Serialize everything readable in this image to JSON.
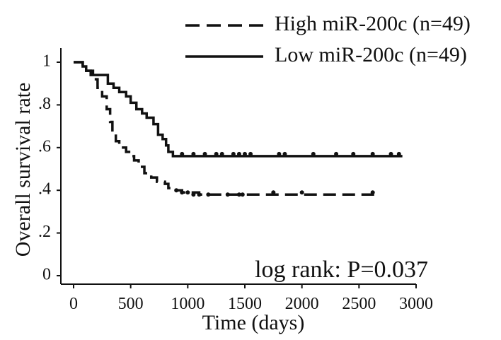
{
  "chart_data": {
    "type": "line",
    "subtype": "kaplan-meier",
    "xlabel": "Time (days)",
    "ylabel": "Overall survival rate",
    "xlim": [
      0,
      3000
    ],
    "ylim": [
      0,
      1
    ],
    "x_ticks": [
      0,
      500,
      1000,
      1500,
      2000,
      2500,
      3000
    ],
    "x_tick_labels": [
      "0",
      "500",
      "1000",
      "1500",
      "2000",
      "2500",
      "3000"
    ],
    "y_ticks": [
      0,
      0.2,
      0.4,
      0.6,
      0.8,
      1
    ],
    "y_tick_labels": [
      "0",
      ".2",
      ".4",
      ".6",
      ".8",
      "1"
    ],
    "grid": false,
    "legend_position": "top-right",
    "annotation": "log rank: P=0.037",
    "series": [
      {
        "name": "High miR-200c (n=49)",
        "style": "dashed",
        "color": "#111111",
        "steps": [
          [
            0,
            1.0
          ],
          [
            80,
            0.98
          ],
          [
            110,
            0.96
          ],
          [
            170,
            0.92
          ],
          [
            210,
            0.88
          ],
          [
            250,
            0.84
          ],
          [
            290,
            0.78
          ],
          [
            320,
            0.72
          ],
          [
            340,
            0.67
          ],
          [
            370,
            0.63
          ],
          [
            400,
            0.6
          ],
          [
            460,
            0.58
          ],
          [
            500,
            0.56
          ],
          [
            530,
            0.54
          ],
          [
            570,
            0.51
          ],
          [
            620,
            0.48
          ],
          [
            680,
            0.46
          ],
          [
            730,
            0.44
          ],
          [
            800,
            0.43
          ],
          [
            830,
            0.41
          ],
          [
            870,
            0.4
          ],
          [
            950,
            0.39
          ],
          [
            1100,
            0.38
          ],
          [
            2640,
            0.38
          ]
        ],
        "censored": [
          [
            900,
            0.4
          ],
          [
            950,
            0.39
          ],
          [
            1000,
            0.39
          ],
          [
            1050,
            0.38
          ],
          [
            1100,
            0.38
          ],
          [
            1180,
            0.38
          ],
          [
            1350,
            0.38
          ],
          [
            1450,
            0.38
          ],
          [
            1480,
            0.38
          ],
          [
            1750,
            0.39
          ],
          [
            2000,
            0.39
          ],
          [
            2620,
            0.39
          ]
        ]
      },
      {
        "name": "Low miR-200c  (n=49)",
        "style": "solid",
        "color": "#111111",
        "steps": [
          [
            0,
            1.0
          ],
          [
            80,
            0.98
          ],
          [
            110,
            0.96
          ],
          [
            150,
            0.94
          ],
          [
            270,
            0.94
          ],
          [
            300,
            0.9
          ],
          [
            350,
            0.88
          ],
          [
            400,
            0.86
          ],
          [
            460,
            0.84
          ],
          [
            500,
            0.81
          ],
          [
            550,
            0.78
          ],
          [
            600,
            0.76
          ],
          [
            640,
            0.74
          ],
          [
            700,
            0.71
          ],
          [
            740,
            0.66
          ],
          [
            780,
            0.64
          ],
          [
            810,
            0.61
          ],
          [
            830,
            0.58
          ],
          [
            870,
            0.56
          ],
          [
            2880,
            0.56
          ]
        ],
        "censored": [
          [
            950,
            0.57
          ],
          [
            1050,
            0.57
          ],
          [
            1150,
            0.57
          ],
          [
            1250,
            0.57
          ],
          [
            1300,
            0.57
          ],
          [
            1400,
            0.57
          ],
          [
            1450,
            0.57
          ],
          [
            1500,
            0.57
          ],
          [
            1550,
            0.57
          ],
          [
            1800,
            0.57
          ],
          [
            1850,
            0.57
          ],
          [
            2100,
            0.57
          ],
          [
            2300,
            0.57
          ],
          [
            2450,
            0.57
          ],
          [
            2620,
            0.57
          ],
          [
            2780,
            0.57
          ],
          [
            2850,
            0.57
          ]
        ]
      }
    ]
  }
}
